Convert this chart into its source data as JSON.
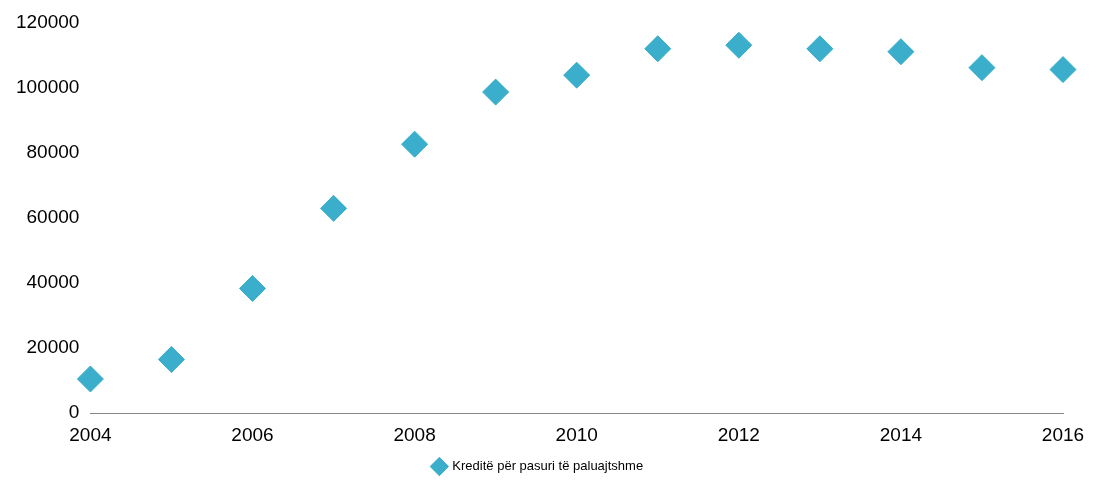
{
  "chart_data": {
    "type": "scatter",
    "x": [
      2004,
      2005,
      2006,
      2007,
      2008,
      2009,
      2010,
      2011,
      2012,
      2013,
      2014,
      2015,
      2016
    ],
    "series": [
      {
        "name": "Kreditë për pasuri të paluajtshme",
        "color": "#3aaecb",
        "values": [
          10500,
          16500,
          38300,
          62900,
          82600,
          98600,
          103800,
          111900,
          113000,
          111900,
          111000,
          106100,
          105500
        ]
      }
    ],
    "xlim": [
      2004,
      2016
    ],
    "xticks": [
      2004,
      2006,
      2008,
      2010,
      2012,
      2014,
      2016
    ],
    "ylim": [
      0,
      120000
    ],
    "yticks": [
      0,
      20000,
      40000,
      60000,
      80000,
      100000,
      120000
    ],
    "grid": false,
    "legend": "bottom",
    "marker": "diamond"
  }
}
